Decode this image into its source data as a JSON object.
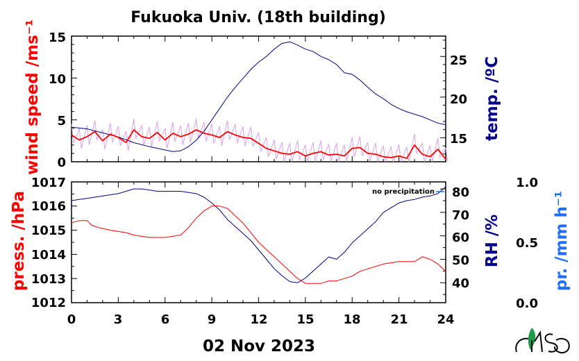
{
  "title": "Fukuoka Univ. (18th building)",
  "date_label": "02 Nov 2023",
  "colors": {
    "red": "#ff0000",
    "navy": "#00008b",
    "blue": "#1e6eff",
    "pink": "#d9a0e6"
  },
  "chart_data": [
    {
      "type": "line",
      "panel": "top",
      "xlim": [
        0,
        24
      ],
      "ylabel_left": "wind speed /ms⁻¹",
      "ylabel_right": "temp. /ºC",
      "ylim_left": [
        0,
        15
      ],
      "ylim_right": [
        12.05,
        27.5
      ],
      "left_ticks": [
        "0",
        "5",
        "10",
        "15"
      ],
      "right_ticks": [
        "15",
        "20",
        "25"
      ],
      "series": [
        {
          "label": "wind speed (mean)",
          "color": "red",
          "x": [
            0,
            0.5,
            1,
            1.5,
            2,
            2.5,
            3,
            3.5,
            4,
            4.5,
            5,
            5.5,
            6,
            6.5,
            7,
            7.5,
            8,
            8.5,
            9,
            9.5,
            10,
            10.5,
            11,
            11.5,
            12,
            12.5,
            13,
            13.5,
            14,
            14.5,
            15,
            15.5,
            16,
            16.5,
            17,
            17.5,
            18,
            18.5,
            19,
            19.5,
            20,
            20.5,
            21,
            21.5,
            22,
            22.5,
            23,
            23.5,
            24
          ],
          "y": [
            3.2,
            2.6,
            3.0,
            3.6,
            2.5,
            3.3,
            2.9,
            2.3,
            3.8,
            3.0,
            2.8,
            3.5,
            2.6,
            3.4,
            3.0,
            3.3,
            3.8,
            3.4,
            3.2,
            2.9,
            3.6,
            3.2,
            2.9,
            2.8,
            2.2,
            1.6,
            1.3,
            1.0,
            0.9,
            1.2,
            0.7,
            1.0,
            1.2,
            0.8,
            0.9,
            0.7,
            1.6,
            1.7,
            1.0,
            0.9,
            0.6,
            0.5,
            0.7,
            0.4,
            2.0,
            0.9,
            0.6,
            1.5,
            0.3
          ]
        },
        {
          "label": "temperature",
          "color": "navy",
          "x": [
            0,
            1,
            2,
            3,
            4,
            5,
            6,
            6.5,
            7,
            7.5,
            8,
            8.5,
            9,
            9.5,
            10,
            10.5,
            11,
            11.5,
            12,
            12.5,
            13,
            13.5,
            14,
            14.5,
            15,
            15.5,
            16,
            16.5,
            17,
            17.5,
            18,
            18.5,
            19,
            19.5,
            20,
            20.5,
            21,
            21.5,
            22,
            22.5,
            23,
            23.5,
            24
          ],
          "y": [
            16.3,
            16.1,
            15.6,
            15.1,
            14.4,
            13.9,
            13.5,
            13.3,
            13.4,
            13.9,
            14.7,
            15.8,
            17.2,
            18.6,
            20.0,
            21.2,
            22.3,
            23.4,
            24.3,
            25.0,
            25.9,
            26.6,
            26.8,
            26.4,
            25.9,
            25.6,
            25.0,
            24.6,
            24.0,
            23.0,
            22.8,
            22.1,
            21.2,
            20.4,
            19.8,
            19.1,
            18.6,
            18.2,
            17.9,
            17.6,
            17.2,
            16.8,
            16.6
          ]
        }
      ]
    },
    {
      "type": "line",
      "panel": "bottom",
      "xlim": [
        0,
        24
      ],
      "ylabel_left": "press. /hPa",
      "ylabel_right": "RH /%",
      "ylabel_far_right": "pr. /mm h⁻¹",
      "ylim_left": [
        1012,
        1017
      ],
      "ylim_right": [
        31.5,
        83
      ],
      "ylim_far_right": [
        0,
        1
      ],
      "left_ticks": [
        "1012",
        "1013",
        "1014",
        "1015",
        "1016",
        "1017"
      ],
      "right_ticks": [
        "40",
        "50",
        "60",
        "70",
        "80"
      ],
      "far_right_ticks": [
        "0.0",
        "0.5",
        "1.0"
      ],
      "annotation": "no precipitation",
      "x_ticks": [
        "0",
        "3",
        "6",
        "9",
        "12",
        "15",
        "18",
        "21",
        "24"
      ],
      "series": [
        {
          "label": "pressure",
          "color": "red",
          "x": [
            0,
            0.5,
            1,
            1.3,
            1.8,
            2.5,
            3.5,
            4,
            5,
            6,
            7,
            7.5,
            8,
            8.5,
            9,
            9.5,
            10,
            10.5,
            11,
            11.5,
            12,
            12.5,
            13,
            13.5,
            14,
            14.5,
            15,
            15.5,
            16,
            16.5,
            17,
            17.5,
            18,
            18.5,
            19,
            20,
            21,
            22,
            22.5,
            23,
            23.5,
            24
          ],
          "y": [
            1015.3,
            1015.4,
            1015.4,
            1015.2,
            1015.1,
            1015.0,
            1014.9,
            1014.8,
            1014.7,
            1014.7,
            1014.8,
            1015.1,
            1015.5,
            1015.8,
            1016.0,
            1016.0,
            1015.9,
            1015.6,
            1015.3,
            1014.9,
            1014.5,
            1014.2,
            1013.9,
            1013.6,
            1013.3,
            1013.0,
            1012.8,
            1012.8,
            1012.8,
            1012.9,
            1012.9,
            1013.0,
            1013.1,
            1013.3,
            1013.4,
            1013.6,
            1013.7,
            1013.7,
            1013.9,
            1013.8,
            1013.6,
            1013.3
          ]
        },
        {
          "label": "relative humidity",
          "color": "navy",
          "x": [
            0,
            0.5,
            1,
            1.5,
            2,
            2.5,
            3,
            3.5,
            4,
            4.5,
            5,
            5.5,
            6,
            6.5,
            7,
            7.5,
            8,
            8.5,
            9,
            9.5,
            10,
            10.5,
            11,
            11.5,
            12,
            12.5,
            13,
            13.5,
            14,
            14.5,
            15,
            15.5,
            16,
            16.5,
            17,
            17.5,
            18,
            18.5,
            19,
            19.5,
            20,
            20.5,
            21,
            21.5,
            22,
            22.5,
            23,
            23.5,
            24
          ],
          "y": [
            75,
            75.5,
            76,
            76.5,
            77,
            77.5,
            78,
            79,
            80,
            80,
            79.5,
            79,
            79,
            79,
            79,
            78.5,
            78,
            76.5,
            74,
            71,
            67,
            64,
            61,
            58,
            54,
            50,
            46,
            43,
            40.5,
            40,
            42,
            45,
            48,
            51,
            50,
            53,
            57,
            60,
            63,
            66,
            70,
            72,
            74,
            75,
            75.5,
            76.5,
            77,
            78,
            81
          ]
        },
        {
          "label": "precipitation",
          "color": "blue",
          "x": [],
          "y": []
        }
      ]
    }
  ]
}
